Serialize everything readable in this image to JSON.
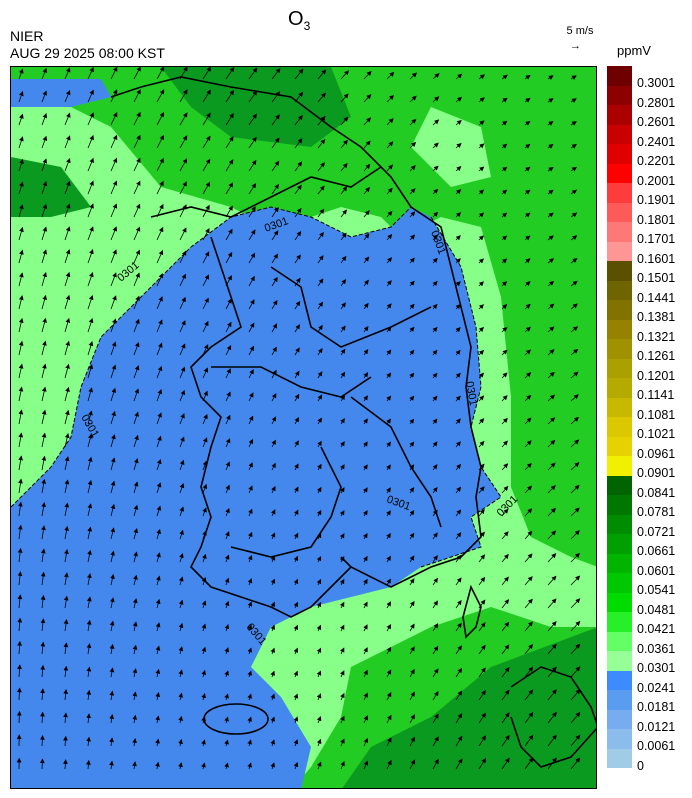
{
  "title_main": "O",
  "title_sub": "3",
  "agency": "NIER",
  "datetime": "AUG 29 2025 08:00 KST",
  "wind_ref_label": "5 m/s",
  "wind_ref_arrow": "→",
  "unit": "ppmV",
  "contour_label": "0301",
  "legend": [
    {
      "label": "0.3001",
      "color": "#6e0000"
    },
    {
      "label": "0.2801",
      "color": "#8c0000"
    },
    {
      "label": "0.2601",
      "color": "#aa0000"
    },
    {
      "label": "0.2401",
      "color": "#c80000"
    },
    {
      "label": "0.2201",
      "color": "#e10000"
    },
    {
      "label": "0.2001",
      "color": "#ff0000"
    },
    {
      "label": "0.1901",
      "color": "#ff3c3c"
    },
    {
      "label": "0.1801",
      "color": "#ff5a5a"
    },
    {
      "label": "0.1701",
      "color": "#ff7878"
    },
    {
      "label": "0.1601",
      "color": "#ff9696"
    },
    {
      "label": "0.1501",
      "color": "#5a5000"
    },
    {
      "label": "0.1441",
      "color": "#6e6400"
    },
    {
      "label": "0.1381",
      "color": "#827300"
    },
    {
      "label": "0.1321",
      "color": "#968200"
    },
    {
      "label": "0.1261",
      "color": "#a09100"
    },
    {
      "label": "0.1201",
      "color": "#aaa000"
    },
    {
      "label": "0.1141",
      "color": "#b4aa00"
    },
    {
      "label": "0.1081",
      "color": "#c8b900"
    },
    {
      "label": "0.1021",
      "color": "#dcc800"
    },
    {
      "label": "0.0961",
      "color": "#e6d200"
    },
    {
      "label": "0.0901",
      "color": "#f0f000"
    },
    {
      "label": "0.0841",
      "color": "#006400"
    },
    {
      "label": "0.0781",
      "color": "#007800"
    },
    {
      "label": "0.0721",
      "color": "#008c00"
    },
    {
      "label": "0.0661",
      "color": "#00a000"
    },
    {
      "label": "0.0601",
      "color": "#00b400"
    },
    {
      "label": "0.0541",
      "color": "#00c800"
    },
    {
      "label": "0.0481",
      "color": "#00dc00"
    },
    {
      "label": "0.0421",
      "color": "#28f028"
    },
    {
      "label": "0.0361",
      "color": "#64ff64"
    },
    {
      "label": "0.0301",
      "color": "#96ff96"
    },
    {
      "label": "0.0241",
      "color": "#3c8cff"
    },
    {
      "label": "0.0181",
      "color": "#5a9cf0"
    },
    {
      "label": "0.0121",
      "color": "#78acf0"
    },
    {
      "label": "0.0061",
      "color": "#8cbcec"
    },
    {
      "label": "0",
      "color": "#a0cce8"
    }
  ],
  "colors": {
    "blue_low": "#4488ee",
    "green_mid": "#22cc22",
    "green_light": "#88ff88",
    "green_dark": "#0a9a20"
  }
}
